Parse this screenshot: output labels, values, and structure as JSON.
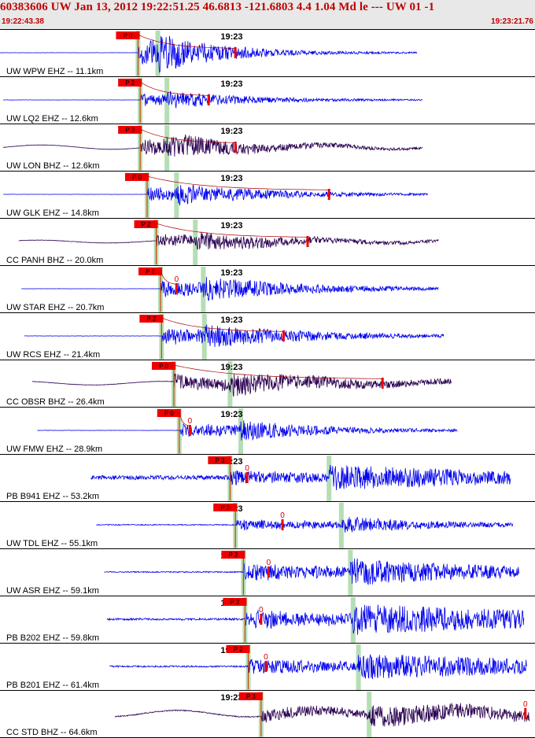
{
  "header": {
    "title": "60383606 UW Jan 13, 2012 19:22:51.25   46.6813 -121.6803  4.4 1.04 Md le --- UW 01  -1",
    "start_time": "19:22:43.38",
    "end_time": "19:23:21.76"
  },
  "colors": {
    "blue": "#0000ee",
    "dark": "#2a0050",
    "pick": "#ee0000",
    "window": "#a8d8a8"
  },
  "chart_data": {
    "type": "line",
    "title": "60383606 UW Jan 13, 2012 19:22:51.25   46.6813 -121.6803  4.4 1.04 Md le --- UW 01  -1",
    "x_range": [
      "19:22:43.38",
      "19:23:21.76"
    ],
    "time_tick_label": "19:23",
    "series": [
      {
        "name": "UW WPW EHZ -- 11.1km",
        "p_label": "P 0",
        "zero_label": "",
        "color": "blue",
        "start": 0.0,
        "end": 0.78,
        "p": 0.258,
        "s": 0.295,
        "coda": 0.44,
        "pre": 0.004,
        "amp": 1.0,
        "decay": 0.5,
        "wave": 0.0,
        "tail": 0.06
      },
      {
        "name": "UW LQ2 EHZ -- 12.6km",
        "p_label": "P 2",
        "zero_label": "",
        "color": "blue",
        "start": 0.006,
        "end": 0.79,
        "p": 0.262,
        "s": 0.312,
        "coda": 0.39,
        "pre": 0.004,
        "amp": 0.45,
        "decay": 0.4,
        "wave": 0.0,
        "tail": 0.05
      },
      {
        "name": "UW LON BHZ -- 12.6km",
        "p_label": "P 3",
        "zero_label": "",
        "color": "dark",
        "start": 0.006,
        "end": 0.79,
        "p": 0.262,
        "s": 0.312,
        "coda": 0.44,
        "pre": 0.004,
        "amp": 0.6,
        "decay": 0.35,
        "wave": 0.3,
        "tail": 0.07
      },
      {
        "name": "UW GLK EHZ -- 14.8km",
        "p_label": "P 0",
        "zero_label": "",
        "color": "blue",
        "start": 0.006,
        "end": 0.8,
        "p": 0.275,
        "s": 0.33,
        "coda": 0.615,
        "pre": 0.004,
        "amp": 0.55,
        "decay": 0.35,
        "wave": 0.0,
        "tail": 0.05
      },
      {
        "name": "CC PANH BHZ -- 20.0km",
        "p_label": "P 2",
        "zero_label": "",
        "color": "dark",
        "start": 0.035,
        "end": 0.82,
        "p": 0.292,
        "s": 0.365,
        "coda": 0.575,
        "pre": 0.006,
        "amp": 0.45,
        "decay": 0.3,
        "wave": 0.2,
        "tail": 0.08
      },
      {
        "name": "UW STAR EHZ -- 20.7km",
        "p_label": "P 1",
        "zero_label": "0",
        "color": "blue",
        "start": 0.04,
        "end": 0.82,
        "p": 0.3,
        "s": 0.38,
        "coda": 0.33,
        "pre": 0.004,
        "amp": 0.6,
        "decay": 0.3,
        "wave": 0.0,
        "tail": 0.05
      },
      {
        "name": "UW RCS EHZ -- 21.4km",
        "p_label": "P 2",
        "zero_label": "",
        "color": "blue",
        "start": 0.045,
        "end": 0.83,
        "p": 0.302,
        "s": 0.382,
        "coda": 0.53,
        "pre": 0.006,
        "amp": 0.6,
        "decay": 0.3,
        "wave": 0.0,
        "tail": 0.06
      },
      {
        "name": "CC OBSR BHZ -- 26.4km",
        "p_label": "P 0",
        "zero_label": "",
        "color": "dark",
        "start": 0.06,
        "end": 0.845,
        "p": 0.325,
        "s": 0.43,
        "coda": 0.715,
        "pre": 0.006,
        "amp": 0.55,
        "decay": 0.25,
        "wave": 0.25,
        "tail": 0.1
      },
      {
        "name": "UW FMW EHZ -- 28.9km",
        "p_label": "P 0",
        "zero_label": "0",
        "color": "blue",
        "start": 0.07,
        "end": 0.855,
        "p": 0.335,
        "s": 0.45,
        "coda": 0.355,
        "pre": 0.006,
        "amp": 0.5,
        "decay": 0.35,
        "wave": 0.0,
        "tail": 0.06
      },
      {
        "name": "PB B941 EHZ -- 53.2km",
        "p_label": "P 3",
        "zero_label": "0",
        "color": "blue",
        "start": 0.17,
        "end": 0.955,
        "p": 0.43,
        "s": 0.615,
        "coda": 0.462,
        "pre": 0.09,
        "amp": 0.55,
        "decay": 0.15,
        "wave": 0.0,
        "tail": 0.3
      },
      {
        "name": "UW TDL EHZ -- 55.1km",
        "p_label": "P 3",
        "zero_label": "0",
        "color": "blue",
        "start": 0.18,
        "end": 0.96,
        "p": 0.44,
        "s": 0.638,
        "coda": 0.528,
        "pre": 0.02,
        "amp": 0.4,
        "decay": 0.3,
        "wave": 0.0,
        "tail": 0.06
      },
      {
        "name": "UW ASR EHZ -- 59.1km",
        "p_label": "P 2",
        "zero_label": "0",
        "color": "blue",
        "start": 0.195,
        "end": 0.97,
        "p": 0.455,
        "s": 0.655,
        "coda": 0.502,
        "pre": 0.02,
        "amp": 0.65,
        "decay": 0.18,
        "wave": 0.0,
        "tail": 0.12
      },
      {
        "name": "PB B202 EHZ -- 59.8km",
        "p_label": "P 2",
        "zero_label": "0",
        "color": "blue",
        "start": 0.2,
        "end": 0.98,
        "p": 0.458,
        "s": 0.66,
        "coda": 0.488,
        "pre": 0.035,
        "amp": 0.7,
        "decay": 0.12,
        "wave": 0.0,
        "tail": 0.25
      },
      {
        "name": "PB B201 EHZ -- 61.4km",
        "p_label": "P 2",
        "zero_label": "0",
        "color": "blue",
        "start": 0.205,
        "end": 0.985,
        "p": 0.464,
        "s": 0.67,
        "coda": 0.497,
        "pre": 0.03,
        "amp": 0.6,
        "decay": 0.12,
        "wave": 0.0,
        "tail": 0.2
      },
      {
        "name": "CC STD BHZ -- 64.6km",
        "p_label": "P 3",
        "zero_label": "0",
        "color": "dark",
        "start": 0.215,
        "end": 0.99,
        "p": 0.488,
        "s": 0.69,
        "coda": 0.982,
        "pre": 0.02,
        "amp": 0.5,
        "decay": 0.15,
        "wave": 0.45,
        "tail": 0.12
      }
    ]
  }
}
